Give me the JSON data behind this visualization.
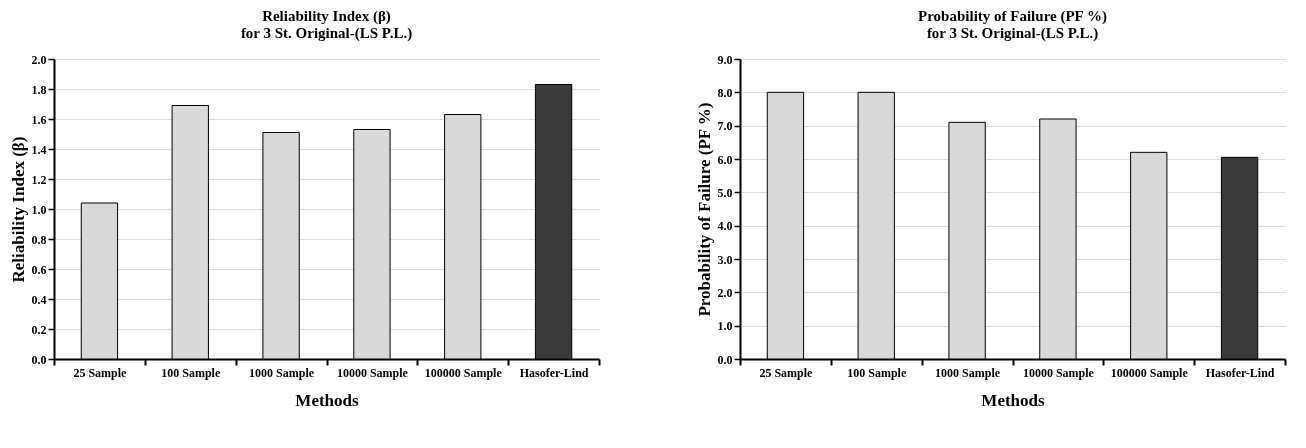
{
  "chart_data": [
    {
      "type": "bar",
      "title": "Reliability Index  (β)",
      "subtitle": "for 3 St. Original-(LS P.L.)",
      "xlabel": "Methods",
      "ylabel": "Reliability Index  (β)",
      "categories": [
        "25 Sample",
        "100 Sample",
        "1000 Sample",
        "10000 Sample",
        "100000 Sample",
        "Hasofer-Lind"
      ],
      "values": [
        1.04,
        1.69,
        1.51,
        1.53,
        1.63,
        1.83
      ],
      "colors": [
        "#d9d9d9",
        "#d9d9d9",
        "#d9d9d9",
        "#d9d9d9",
        "#d9d9d9",
        "#3a3a3a"
      ],
      "ylim": [
        0,
        2
      ],
      "yticks": [
        {
          "value": 0,
          "label": "0.0"
        },
        {
          "value": 0.2,
          "label": "0.2"
        },
        {
          "value": 0.4,
          "label": "0.4"
        },
        {
          "value": 0.6,
          "label": "0.6"
        },
        {
          "value": 0.8,
          "label": "0.8"
        },
        {
          "value": 1,
          "label": "1.0"
        },
        {
          "value": 1.2,
          "label": "1.2"
        },
        {
          "value": 1.4,
          "label": "1.4"
        },
        {
          "value": 1.6,
          "label": "1.6"
        },
        {
          "value": 1.8,
          "label": "1.8"
        },
        {
          "value": 2,
          "label": "2.0"
        }
      ],
      "grid": "y"
    },
    {
      "type": "bar",
      "title": "Probability of Failure  (PF %)",
      "subtitle": "for 3 St. Original-(LS P.L.)",
      "xlabel": "Methods",
      "ylabel": "Probability of Failure  (PF %)",
      "categories": [
        "25 Sample",
        "100 Sample",
        "1000 Sample",
        "10000 Sample",
        "100000 Sample",
        "Hasofer-Lind"
      ],
      "values": [
        8.0,
        8.0,
        7.1,
        7.2,
        6.2,
        6.05
      ],
      "colors": [
        "#d9d9d9",
        "#d9d9d9",
        "#d9d9d9",
        "#d9d9d9",
        "#d9d9d9",
        "#3a3a3a"
      ],
      "ylim": [
        0,
        9
      ],
      "yticks": [
        {
          "value": 0,
          "label": "0.0"
        },
        {
          "value": 1,
          "label": "1.0"
        },
        {
          "value": 2,
          "label": "2.0"
        },
        {
          "value": 3,
          "label": "3.0"
        },
        {
          "value": 4,
          "label": "4.0"
        },
        {
          "value": 5,
          "label": "5.0"
        },
        {
          "value": 6,
          "label": "6.0"
        },
        {
          "value": 7,
          "label": "7.0"
        },
        {
          "value": 8,
          "label": "8.0"
        },
        {
          "value": 9,
          "label": "9.0"
        }
      ],
      "grid": "y"
    }
  ]
}
